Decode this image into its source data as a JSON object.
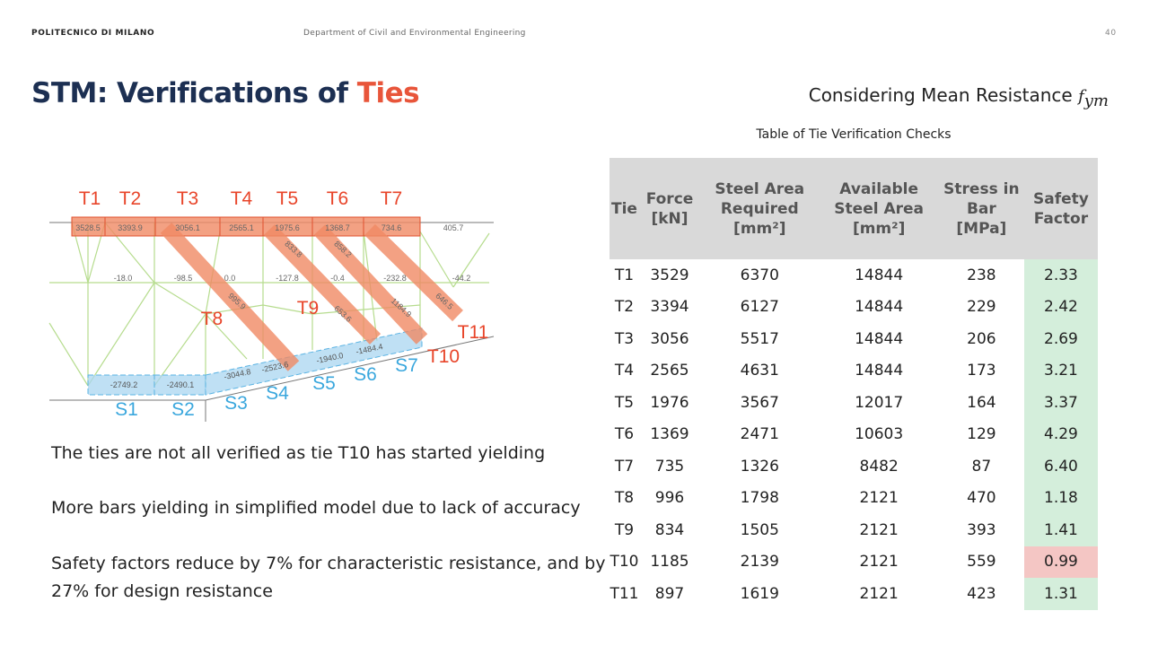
{
  "header": {
    "institution": "POLITECNICO DI MILANO",
    "department": "Department of Civil and Environmental Engineering",
    "page": "40"
  },
  "title": {
    "main": "STM: Verifications of ",
    "accent": "Ties"
  },
  "subtitle": {
    "text": "Considering Mean Resistance ",
    "symbol": "f",
    "subscript": "ym"
  },
  "table": {
    "caption": "Table of Tie Verification Checks",
    "headers": [
      "Tie",
      "Force [kN]",
      "Steel Area Required [mm²]",
      "Available Steel Area [mm²]",
      "Stress in Bar [MPa]",
      "Safety Factor"
    ],
    "rows": [
      [
        "T1",
        "3529",
        "6370",
        "14844",
        "238",
        "2.33"
      ],
      [
        "T2",
        "3394",
        "6127",
        "14844",
        "229",
        "2.42"
      ],
      [
        "T3",
        "3056",
        "5517",
        "14844",
        "206",
        "2.69"
      ],
      [
        "T4",
        "2565",
        "4631",
        "14844",
        "173",
        "3.21"
      ],
      [
        "T5",
        "1976",
        "3567",
        "12017",
        "164",
        "3.37"
      ],
      [
        "T6",
        "1369",
        "2471",
        "10603",
        "129",
        "4.29"
      ],
      [
        "T7",
        "735",
        "1326",
        "8482",
        "87",
        "6.40"
      ],
      [
        "T8",
        "996",
        "1798",
        "2121",
        "470",
        "1.18"
      ],
      [
        "T9",
        "834",
        "1505",
        "2121",
        "393",
        "1.41"
      ],
      [
        "T10",
        "1185",
        "2139",
        "2121",
        "559",
        "0.99"
      ],
      [
        "T11",
        "897",
        "1619",
        "2121",
        "423",
        "1.31"
      ]
    ],
    "colors": {
      "pass": "#d4eedb",
      "fail": "#f4c6c4",
      "header": "#d9d9d9"
    }
  },
  "diagram": {
    "tie_labels": [
      "T1",
      "T2",
      "T3",
      "T4",
      "T5",
      "T6",
      "T7",
      "T8",
      "T9",
      "T10",
      "T11"
    ],
    "strut_labels": [
      "S1",
      "S2",
      "S3",
      "S4",
      "S5",
      "S6",
      "S7"
    ],
    "top_forces": [
      "3528.5",
      "3393.9",
      "3056.1",
      "2565.1",
      "1975.6",
      "1368.7",
      "734.6",
      "405.7"
    ],
    "diag_forces": [
      "995.9",
      "833.8",
      "858.2",
      "1184.9",
      "646.5",
      "653.6"
    ],
    "bottom_forces": [
      "-2749.2",
      "-2490.1",
      "-3044.8",
      "-2523.6",
      "-1940.0",
      "-1484.4"
    ],
    "mid_forces": [
      "-18.0",
      "-98.5",
      "0.0",
      "-127.8",
      "-0.4",
      "-232.8",
      "-44.2"
    ],
    "colors": {
      "tie": "#f08a64",
      "strut": "#a9d6f0",
      "tie_label": "#e8452a",
      "strut_label": "#3aa7dd",
      "members": "#b6dc8e"
    }
  },
  "bullets": [
    "The ties are not all verified as tie T10 has started yielding",
    "More bars yielding in simplified model due to lack of accuracy",
    "Safety factors reduce by 7% for characteristic resistance, and by 27% for design resistance"
  ]
}
